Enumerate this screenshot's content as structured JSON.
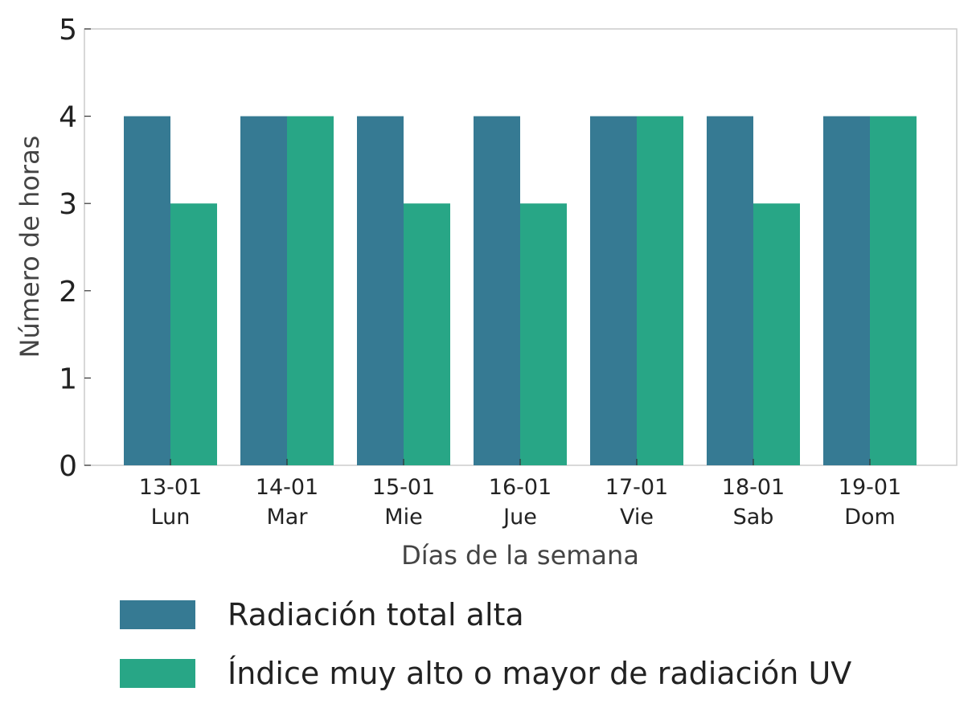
{
  "chart_data": {
    "type": "bar",
    "categories": [
      {
        "date": "13-01",
        "day": "Lun"
      },
      {
        "date": "14-01",
        "day": "Mar"
      },
      {
        "date": "15-01",
        "day": "Mie"
      },
      {
        "date": "16-01",
        "day": "Jue"
      },
      {
        "date": "17-01",
        "day": "Vie"
      },
      {
        "date": "18-01",
        "day": "Sab"
      },
      {
        "date": "19-01",
        "day": "Dom"
      }
    ],
    "series": [
      {
        "name": "Radiación total alta",
        "color": "#367a93",
        "values": [
          4,
          4,
          4,
          4,
          4,
          4,
          4
        ]
      },
      {
        "name": "Índice muy alto o mayor de radiación UV",
        "color": "#28a686",
        "values": [
          3,
          4,
          3,
          3,
          4,
          3,
          4
        ]
      }
    ],
    "xlabel": "Días de la semana",
    "ylabel": "Número de horas",
    "ylim": [
      0,
      5
    ],
    "yticks": [
      0,
      1,
      2,
      3,
      4,
      5
    ],
    "grid": false,
    "legend_position": "bottom-left"
  }
}
